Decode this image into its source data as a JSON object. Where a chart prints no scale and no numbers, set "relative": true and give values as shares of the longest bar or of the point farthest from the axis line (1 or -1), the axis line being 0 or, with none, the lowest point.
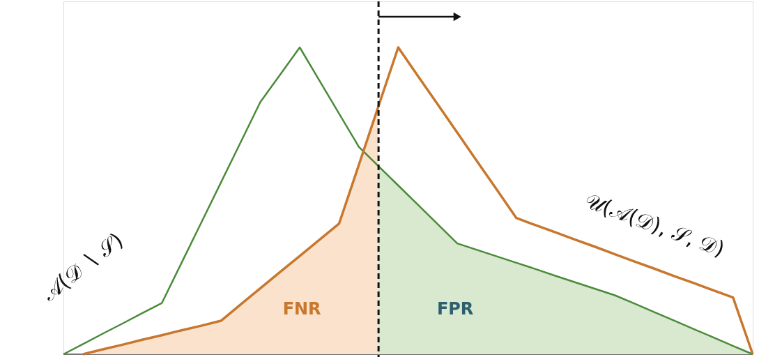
{
  "chart_data": {
    "type": "line",
    "relative": true,
    "categories": [
      null,
      null,
      null,
      null,
      null,
      null,
      null,
      null,
      null,
      null,
      null,
      null,
      null,
      null,
      null,
      null,
      null,
      null,
      null,
      null,
      null,
      null,
      null,
      null,
      null,
      null,
      null,
      null,
      null,
      null,
      null,
      null,
      null,
      null,
      null,
      null
    ],
    "series": [
      {
        "name": "𝒜(𝒟 ∖ 𝒮)",
        "color": "#4a8a3a",
        "values": [
          0,
          0.033,
          0.067,
          0.1,
          0.134,
          0.167,
          0.298,
          0.429,
          0.56,
          0.691,
          0.822,
          0.911,
          1,
          0.892,
          0.784,
          0.676,
          0.613,
          0.55,
          0.487,
          0.424,
          0.361,
          0.34,
          0.319,
          0.298,
          0.277,
          0.255,
          0.234,
          0.213,
          0.192,
          0.165,
          0.137,
          0.11,
          0.082,
          0.055,
          0.027,
          0
        ]
      },
      {
        "name": "𝒰(𝒜(𝒟), 𝒮, 𝒟)",
        "color": "#c8772e",
        "values": [
          null,
          0,
          0.016,
          0.031,
          0.047,
          0.062,
          0.078,
          0.093,
          0.109,
          0.162,
          0.215,
          0.268,
          0.32,
          0.373,
          0.426,
          0.617,
          0.809,
          1,
          0.907,
          0.815,
          0.722,
          0.629,
          0.537,
          0.444,
          0.42,
          0.397,
          0.373,
          0.35,
          0.326,
          0.302,
          0.279,
          0.255,
          0.232,
          0.208,
          0.185,
          0
        ]
      },
      {
        "type": "area",
        "color": "#fae2cc",
        "values": [
          null,
          0,
          0.016,
          0.031,
          0.047,
          0.062,
          0.078,
          0.093,
          0.109,
          0.162,
          0.215,
          0.268,
          0.32,
          0.373,
          0.426,
          0.617,
          0.809,
          null,
          null,
          null,
          null,
          null,
          null,
          null,
          null,
          null,
          null,
          null,
          null,
          null,
          null,
          null,
          null,
          null,
          null,
          null
        ]
      },
      {
        "type": "area",
        "color": "#d8e9cf",
        "values": [
          null,
          null,
          null,
          null,
          null,
          null,
          null,
          null,
          null,
          null,
          null,
          null,
          null,
          null,
          null,
          null,
          0.613,
          0.55,
          0.487,
          0.424,
          0.361,
          0.34,
          0.319,
          0.298,
          0.277,
          0.255,
          0.234,
          0.213,
          0.192,
          0.165,
          0.137,
          0.11,
          0.082,
          0.055,
          0.027,
          0
        ]
      }
    ],
    "annotations": [
      "FNR",
      "FPR"
    ]
  }
}
